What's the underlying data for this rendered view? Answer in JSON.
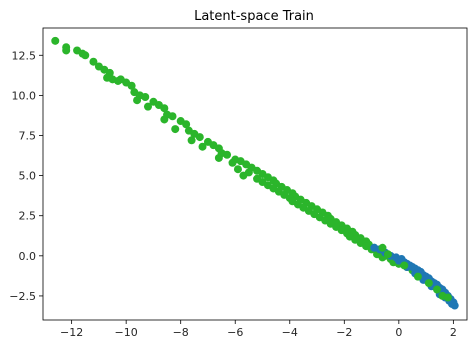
{
  "chart_data": {
    "type": "scatter",
    "title": "Latent-space Train",
    "xlabel": "",
    "ylabel": "",
    "xlim": [
      -13.05,
      2.5
    ],
    "ylim": [
      -4.0,
      14.2
    ],
    "x_ticks": [
      -12,
      -10,
      -8,
      -6,
      -4,
      -2,
      0,
      2
    ],
    "x_tick_labels": [
      "−12",
      "−10",
      "−8",
      "−6",
      "−4",
      "−2",
      "0",
      "2"
    ],
    "y_ticks": [
      -2.5,
      0.0,
      2.5,
      5.0,
      7.5,
      10.0,
      12.5
    ],
    "y_tick_labels": [
      "−2.5",
      "0.0",
      "2.5",
      "5.0",
      "7.5",
      "10.0",
      "12.5"
    ],
    "grid": false,
    "legend": false,
    "series": [
      {
        "color": "#2bb52b",
        "points": [
          [
            -12.6,
            13.4
          ],
          [
            -12.2,
            13.0
          ],
          [
            -12.2,
            12.8
          ],
          [
            -11.8,
            12.8
          ],
          [
            -11.6,
            12.6
          ],
          [
            -11.5,
            12.5
          ],
          [
            -11.2,
            12.1
          ],
          [
            -11.0,
            11.8
          ],
          [
            -10.8,
            11.6
          ],
          [
            -10.6,
            11.4
          ],
          [
            -10.7,
            11.1
          ],
          [
            -10.5,
            11.0
          ],
          [
            -10.3,
            10.9
          ],
          [
            -10.2,
            11.0
          ],
          [
            -10.0,
            10.8
          ],
          [
            -9.8,
            10.6
          ],
          [
            -9.7,
            10.2
          ],
          [
            -9.5,
            10.0
          ],
          [
            -9.3,
            9.9
          ],
          [
            -9.6,
            9.7
          ],
          [
            -9.0,
            9.6
          ],
          [
            -8.8,
            9.4
          ],
          [
            -9.2,
            9.3
          ],
          [
            -8.6,
            9.2
          ],
          [
            -8.5,
            8.8
          ],
          [
            -8.3,
            8.7
          ],
          [
            -8.6,
            8.5
          ],
          [
            -8.0,
            8.4
          ],
          [
            -7.8,
            8.2
          ],
          [
            -8.2,
            7.9
          ],
          [
            -7.7,
            7.8
          ],
          [
            -7.5,
            7.6
          ],
          [
            -7.3,
            7.4
          ],
          [
            -7.6,
            7.2
          ],
          [
            -7.0,
            7.1
          ],
          [
            -6.8,
            6.9
          ],
          [
            -7.2,
            6.8
          ],
          [
            -6.6,
            6.7
          ],
          [
            -6.5,
            6.4
          ],
          [
            -6.3,
            6.3
          ],
          [
            -6.6,
            6.1
          ],
          [
            -6.0,
            6.0
          ],
          [
            -5.8,
            5.9
          ],
          [
            -6.1,
            5.8
          ],
          [
            -5.6,
            5.7
          ],
          [
            -5.4,
            5.5
          ],
          [
            -5.9,
            5.4
          ],
          [
            -5.2,
            5.3
          ],
          [
            -5.5,
            5.2
          ],
          [
            -5.0,
            5.1
          ],
          [
            -5.7,
            5.0
          ],
          [
            -4.8,
            4.9
          ],
          [
            -5.2,
            4.8
          ],
          [
            -4.6,
            4.7
          ],
          [
            -5.0,
            4.6
          ],
          [
            -4.5,
            4.5
          ],
          [
            -4.8,
            4.4
          ],
          [
            -4.3,
            4.3
          ],
          [
            -4.6,
            4.2
          ],
          [
            -4.1,
            4.1
          ],
          [
            -4.4,
            4.0
          ],
          [
            -3.9,
            3.9
          ],
          [
            -4.2,
            3.8
          ],
          [
            -3.8,
            3.7
          ],
          [
            -4.0,
            3.6
          ],
          [
            -3.6,
            3.5
          ],
          [
            -3.9,
            3.4
          ],
          [
            -3.4,
            3.3
          ],
          [
            -3.7,
            3.2
          ],
          [
            -3.2,
            3.1
          ],
          [
            -3.5,
            3.0
          ],
          [
            -3.0,
            2.9
          ],
          [
            -3.3,
            2.8
          ],
          [
            -2.8,
            2.7
          ],
          [
            -3.1,
            2.6
          ],
          [
            -2.6,
            2.5
          ],
          [
            -2.9,
            2.4
          ],
          [
            -2.5,
            2.3
          ],
          [
            -2.7,
            2.2
          ],
          [
            -2.3,
            2.1
          ],
          [
            -2.5,
            2.0
          ],
          [
            -2.1,
            1.9
          ],
          [
            -2.3,
            1.8
          ],
          [
            -1.9,
            1.7
          ],
          [
            -2.1,
            1.6
          ],
          [
            -1.7,
            1.5
          ],
          [
            -1.9,
            1.4
          ],
          [
            -1.6,
            1.3
          ],
          [
            -1.8,
            1.2
          ],
          [
            -1.4,
            1.1
          ],
          [
            -1.6,
            1.0
          ],
          [
            -1.2,
            0.9
          ],
          [
            -1.4,
            0.8
          ],
          [
            -1.1,
            0.7
          ],
          [
            -1.2,
            0.6
          ],
          [
            -0.9,
            0.5
          ],
          [
            -1.0,
            0.4
          ],
          [
            -0.7,
            0.3
          ],
          [
            -0.8,
            0.1
          ],
          [
            -0.5,
            0.0
          ],
          [
            -0.6,
            -0.1
          ],
          [
            -0.3,
            -0.2
          ],
          [
            -0.2,
            -0.4
          ],
          [
            0.0,
            -0.5
          ],
          [
            0.3,
            -0.7
          ],
          [
            0.5,
            -0.9
          ],
          [
            0.8,
            -1.2
          ],
          [
            1.0,
            -1.5
          ],
          [
            1.2,
            -1.8
          ]
        ]
      },
      {
        "color": "#1f77b4",
        "points": [
          [
            -0.9,
            0.5
          ],
          [
            -0.7,
            0.4
          ],
          [
            -0.5,
            0.2
          ],
          [
            -0.3,
            0.0
          ],
          [
            -0.1,
            -0.1
          ],
          [
            0.0,
            -0.3
          ],
          [
            0.1,
            -0.2
          ],
          [
            0.2,
            -0.4
          ],
          [
            0.3,
            -0.5
          ],
          [
            0.4,
            -0.6
          ],
          [
            0.5,
            -0.7
          ],
          [
            0.6,
            -0.8
          ],
          [
            0.7,
            -0.9
          ],
          [
            0.8,
            -1.0
          ],
          [
            0.9,
            -1.2
          ],
          [
            1.0,
            -1.3
          ],
          [
            1.1,
            -1.4
          ],
          [
            1.2,
            -1.6
          ],
          [
            1.3,
            -1.7
          ],
          [
            1.4,
            -1.8
          ],
          [
            1.5,
            -2.0
          ],
          [
            1.6,
            -2.1
          ],
          [
            1.7,
            -2.3
          ],
          [
            1.8,
            -2.5
          ],
          [
            1.9,
            -2.7
          ],
          [
            2.0,
            -2.9
          ],
          [
            2.05,
            -3.1
          ],
          [
            1.5,
            -2.4
          ],
          [
            1.7,
            -2.6
          ],
          [
            1.2,
            -1.9
          ],
          [
            0.9,
            -1.5
          ],
          [
            0.6,
            -1.1
          ],
          [
            0.3,
            -0.7
          ],
          [
            1.85,
            -2.8
          ],
          [
            1.95,
            -3.0
          ]
        ]
      },
      {
        "color": "#2bb52b",
        "points": [
          [
            -0.6,
            0.5
          ],
          [
            0.2,
            -0.6
          ],
          [
            0.7,
            -1.3
          ],
          [
            1.1,
            -1.7
          ],
          [
            1.4,
            -2.1
          ],
          [
            1.6,
            -2.5
          ],
          [
            1.8,
            -2.6
          ],
          [
            -0.4,
            0.1
          ]
        ]
      }
    ]
  }
}
